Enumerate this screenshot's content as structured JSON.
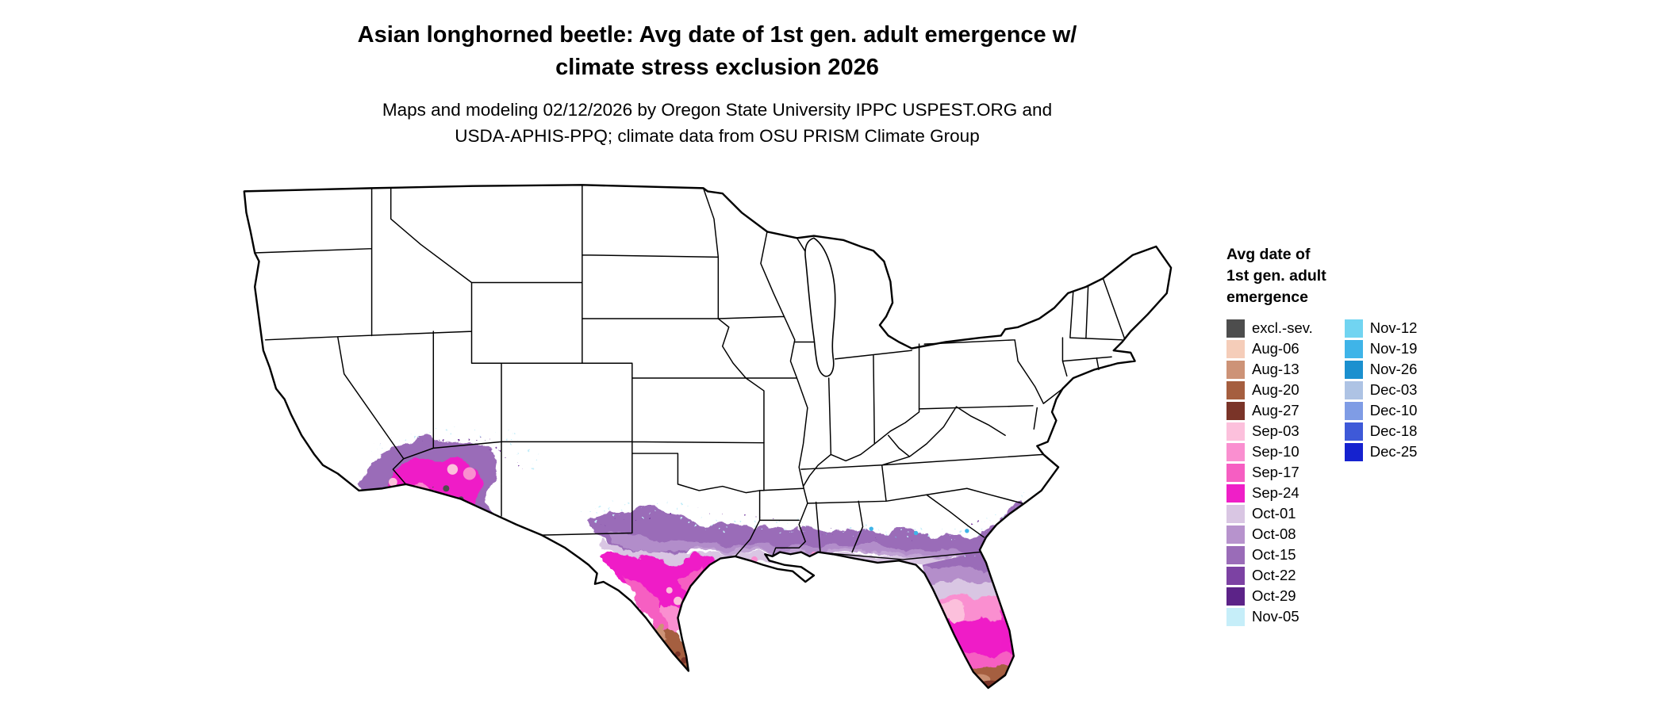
{
  "title": {
    "line1": "Asian longhorned beetle: Avg date of 1st gen. adult emergence w/",
    "line2": "climate stress exclusion 2026"
  },
  "subtitle": {
    "line1": "Maps and modeling 02/12/2026 by Oregon State University IPPC USPEST.ORG and",
    "line2": "USDA-APHIS-PPQ; climate data from OSU PRISM Climate Group"
  },
  "legend": {
    "title_lines": [
      "Avg date of",
      "1st gen. adult",
      "emergence"
    ],
    "columns": [
      {
        "items": [
          {
            "label": "excl.-sev.",
            "color": "#4d4d4d"
          },
          {
            "label": "Aug-06",
            "color": "#f5cdb9"
          },
          {
            "label": "Aug-13",
            "color": "#cd9377"
          },
          {
            "label": "Aug-20",
            "color": "#a55e3f"
          },
          {
            "label": "Aug-27",
            "color": "#7a3428"
          },
          {
            "label": "Sep-03",
            "color": "#fcc0dc"
          },
          {
            "label": "Sep-10",
            "color": "#fa8fd0"
          },
          {
            "label": "Sep-17",
            "color": "#f65ec2"
          },
          {
            "label": "Sep-24",
            "color": "#ef1fc7"
          },
          {
            "label": "Oct-01",
            "color": "#d9c6e3"
          },
          {
            "label": "Oct-08",
            "color": "#b793cd"
          },
          {
            "label": "Oct-15",
            "color": "#9a6cb8"
          },
          {
            "label": "Oct-22",
            "color": "#7c42a3"
          },
          {
            "label": "Oct-29",
            "color": "#5c2388"
          },
          {
            "label": "Nov-05",
            "color": "#c6eef9"
          }
        ]
      },
      {
        "items": [
          {
            "label": "Nov-12",
            "color": "#71d4f1"
          },
          {
            "label": "Nov-19",
            "color": "#3fb4e8"
          },
          {
            "label": "Nov-26",
            "color": "#1b90cf"
          },
          {
            "label": "Dec-03",
            "color": "#aec3e4"
          },
          {
            "label": "Dec-10",
            "color": "#7f9ce5"
          },
          {
            "label": "Dec-18",
            "color": "#3e59d8"
          },
          {
            "label": "Dec-25",
            "color": "#1522cf"
          }
        ]
      }
    ]
  },
  "map": {
    "type": "choropleth",
    "area": "Contiguous United States with state boundaries",
    "colored_areas": [
      "southern Arizona, southeastern California and southern Nevada",
      "central and southern Texas",
      "Gulf Coast band across Louisiana, Mississippi, Alabama and Georgia",
      "Atlantic coastal plain of South Carolina and North Carolina",
      "Florida peninsula"
    ],
    "notes": {
      "earliest_dates": "August (browns) at the southern tip of Texas and southern Florida",
      "latest_dates": "November (cyan/blue speckles) along the northern fringe of the colored band",
      "excluded": "dark gray patches (excl.-sev.) in southern Arizona"
    }
  },
  "chart_data": {
    "type": "map",
    "title": "Asian longhorned beetle: Avg date of 1st gen. adult emergence w/ climate stress exclusion 2026",
    "legend_title": "Avg date of 1st gen. adult emergence",
    "categories": [
      "excl.-sev.",
      "Aug-06",
      "Aug-13",
      "Aug-20",
      "Aug-27",
      "Sep-03",
      "Sep-10",
      "Sep-17",
      "Sep-24",
      "Oct-01",
      "Oct-08",
      "Oct-15",
      "Oct-22",
      "Oct-29",
      "Nov-05",
      "Nov-12",
      "Nov-19",
      "Nov-26",
      "Dec-03",
      "Dec-10",
      "Dec-18",
      "Dec-25"
    ],
    "colors": [
      "#4d4d4d",
      "#f5cdb9",
      "#cd9377",
      "#a55e3f",
      "#7a3428",
      "#fcc0dc",
      "#fa8fd0",
      "#f65ec2",
      "#ef1fc7",
      "#d9c6e3",
      "#b793cd",
      "#9a6cb8",
      "#7c42a3",
      "#5c2388",
      "#c6eef9",
      "#71d4f1",
      "#3fb4e8",
      "#1b90cf",
      "#aec3e4",
      "#7f9ce5",
      "#3e59d8",
      "#1522cf"
    ]
  }
}
